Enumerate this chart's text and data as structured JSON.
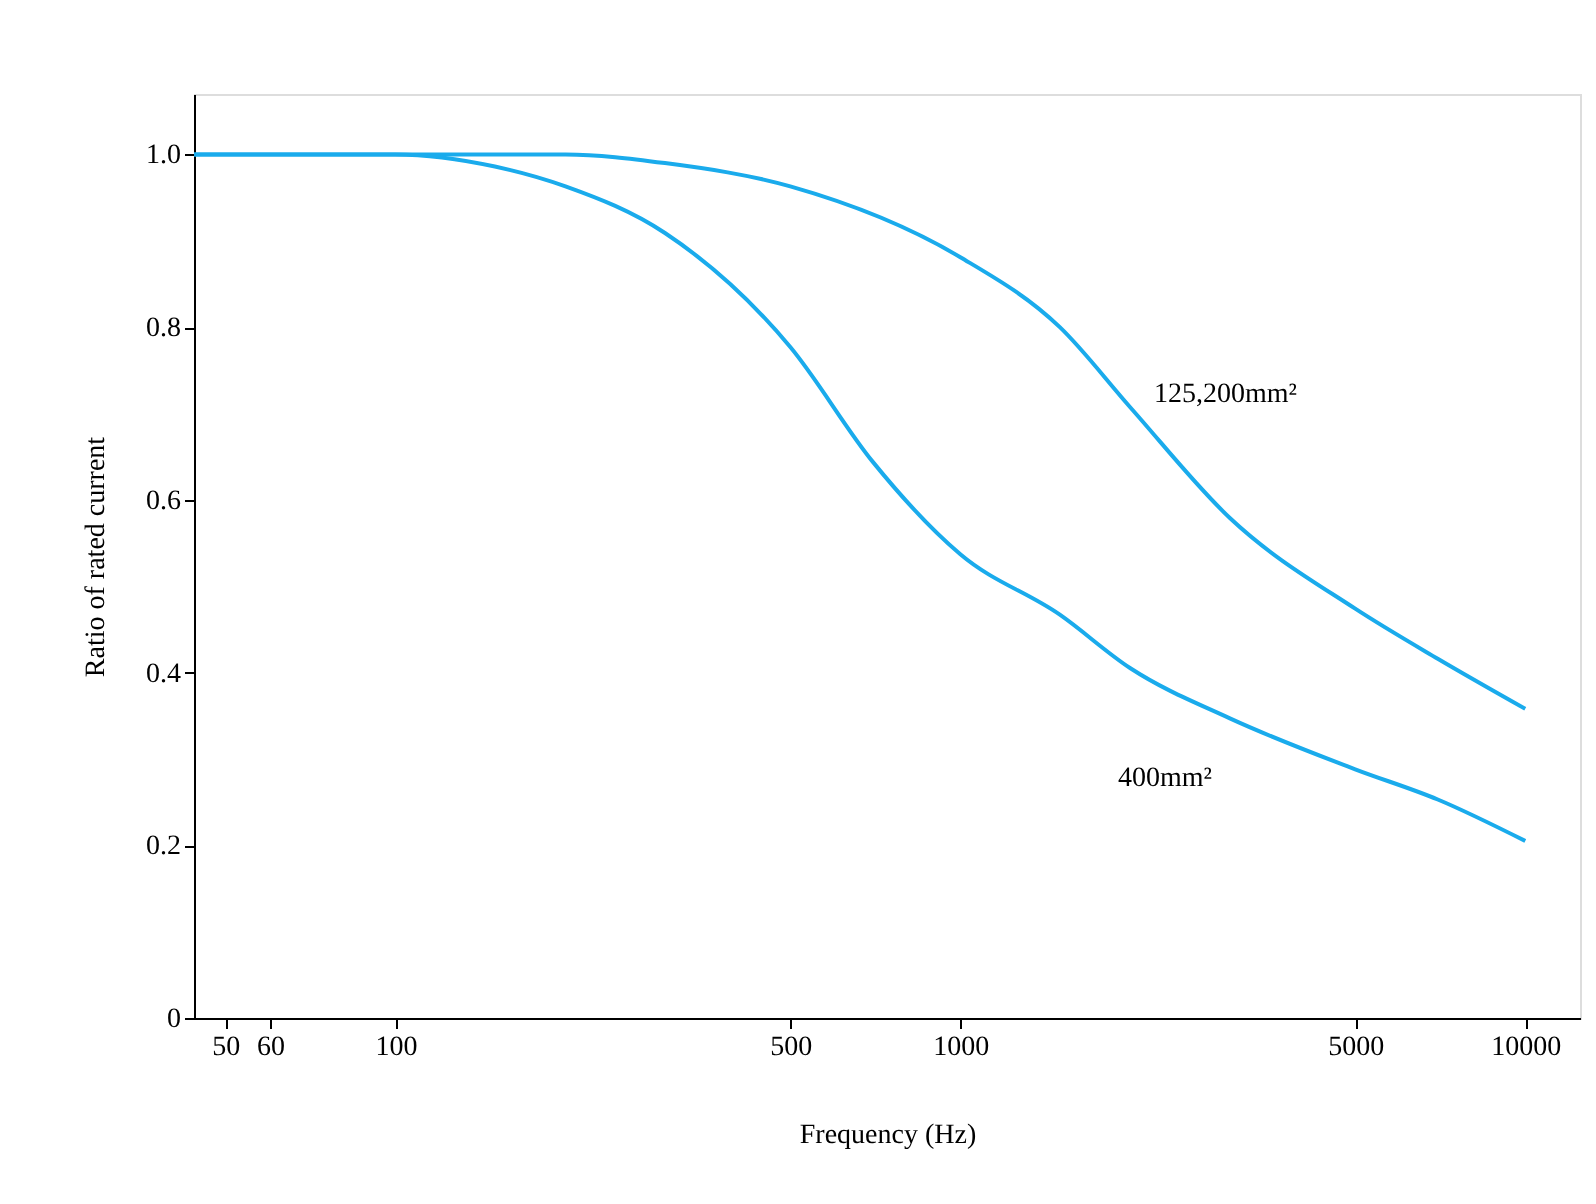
{
  "chart_data": {
    "type": "line",
    "xlabel": "Frequency (Hz)",
    "ylabel": "Ratio of rated current",
    "log": "x",
    "xlim": [
      44,
      12500
    ],
    "xticks": [
      50,
      60,
      100,
      500,
      1000,
      5000,
      10000
    ],
    "ylim": [
      0,
      1.07
    ],
    "yticks": [
      0,
      0.2,
      0.4,
      0.6,
      0.8,
      {
        "value": 1,
        "label": "1.0"
      }
    ],
    "series": [
      {
        "color": "#1aabec",
        "x": [
          44,
          100,
          200,
          300,
          500,
          1000,
          1500,
          2000,
          3000,
          5000,
          7000,
          10000
        ],
        "values": [
          1.0,
          1.0,
          1.0,
          0.99,
          0.963,
          0.881,
          0.8,
          0.707,
          0.579,
          0.474,
          0.416,
          0.358
        ]
      },
      {
        "color": "#1aabec",
        "x": [
          44,
          80,
          100,
          150,
          200,
          300,
          500,
          700,
          1000,
          1500,
          2000,
          3000,
          5000,
          7000,
          10000
        ],
        "values": [
          1.0,
          1.0,
          1.0,
          0.986,
          0.963,
          0.909,
          0.777,
          0.644,
          0.537,
          0.467,
          0.405,
          0.347,
          0.288,
          0.253,
          0.205
        ]
      }
    ],
    "annotations": [
      "125,200mm²",
      "400mm²"
    ]
  }
}
